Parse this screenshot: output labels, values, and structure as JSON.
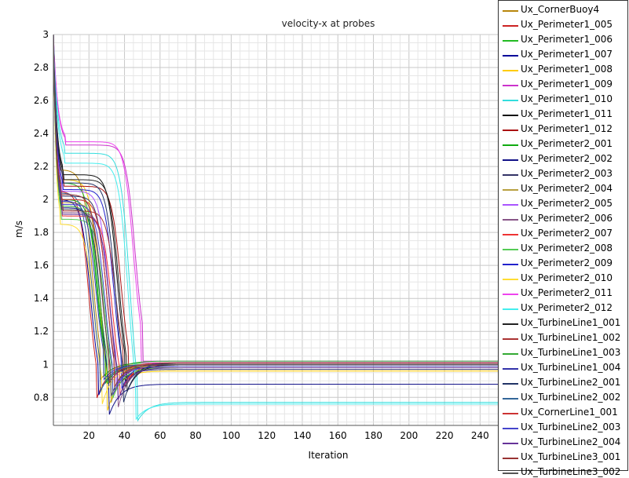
{
  "chart_data": {
    "type": "line",
    "title": "velocity-x at probes",
    "xlabel": "Iteration",
    "ylabel": "m/s",
    "xlim": [
      0,
      250
    ],
    "ylim": [
      0.63,
      3.0
    ],
    "xticks": [
      20,
      40,
      60,
      80,
      100,
      120,
      140,
      160,
      180,
      200,
      220,
      240
    ],
    "yticks": [
      0.8,
      1.0,
      1.2,
      1.4,
      1.6,
      1.8,
      2.0,
      2.2,
      2.4,
      2.6,
      2.8,
      3.0
    ],
    "ytick_labels": [
      "0.8",
      "1",
      "1.2",
      "1.4",
      "1.6",
      "1.8",
      "2",
      "2.2",
      "2.4",
      "2.6",
      "2.8",
      "3"
    ],
    "grid": true,
    "legend_position": "right",
    "series": [
      {
        "name": "Ux_CornerBuoy4",
        "color": "#b8860b",
        "plateau": 2.18,
        "drop": 22,
        "min": 0.9,
        "final": 1.0
      },
      {
        "name": "Ux_Perimeter1_005",
        "color": "#cc2222",
        "plateau": 2.05,
        "drop": 20,
        "min": 0.78,
        "final": 0.99
      },
      {
        "name": "Ux_Perimeter1_006",
        "color": "#22bb22",
        "plateau": 2.1,
        "drop": 24,
        "min": 0.92,
        "final": 1.01
      },
      {
        "name": "Ux_Perimeter1_007",
        "color": "#000099",
        "plateau": 2.0,
        "drop": 21,
        "min": 0.8,
        "final": 0.98
      },
      {
        "name": "Ux_Perimeter1_008",
        "color": "#ffcc00",
        "plateau": 2.12,
        "drop": 26,
        "min": 0.7,
        "final": 0.96
      },
      {
        "name": "Ux_Perimeter1_009",
        "color": "#cc33cc",
        "plateau": 2.33,
        "drop": 46,
        "min": 1.02,
        "final": 1.02
      },
      {
        "name": "Ux_Perimeter1_010",
        "color": "#33dddd",
        "plateau": 2.28,
        "drop": 43,
        "min": 0.65,
        "final": 0.77
      },
      {
        "name": "Ux_Perimeter1_011",
        "color": "#111111",
        "plateau": 2.15,
        "drop": 36,
        "min": 0.85,
        "final": 1.0
      },
      {
        "name": "Ux_Perimeter1_012",
        "color": "#aa1111",
        "plateau": 2.08,
        "drop": 38,
        "min": 0.9,
        "final": 1.01
      },
      {
        "name": "Ux_Perimeter2_001",
        "color": "#11aa11",
        "plateau": 2.0,
        "drop": 25,
        "min": 0.88,
        "final": 0.99
      },
      {
        "name": "Ux_Perimeter2_002",
        "color": "#111188",
        "plateau": 1.95,
        "drop": 27,
        "min": 0.68,
        "final": 0.88
      },
      {
        "name": "Ux_Perimeter2_003",
        "color": "#333366",
        "plateau": 2.02,
        "drop": 30,
        "min": 0.82,
        "final": 0.97
      },
      {
        "name": "Ux_Perimeter2_004",
        "color": "#b8a040",
        "plateau": 1.98,
        "drop": 28,
        "min": 0.75,
        "final": 0.98
      },
      {
        "name": "Ux_Perimeter2_005",
        "color": "#aa55ff",
        "plateau": 2.05,
        "drop": 31,
        "min": 0.86,
        "final": 1.0
      },
      {
        "name": "Ux_Perimeter2_006",
        "color": "#885588",
        "plateau": 1.92,
        "drop": 32,
        "min": 0.72,
        "final": 0.99
      },
      {
        "name": "Ux_Perimeter2_007",
        "color": "#ee3333",
        "plateau": 1.9,
        "drop": 33,
        "min": 0.8,
        "final": 1.0
      },
      {
        "name": "Ux_Perimeter2_008",
        "color": "#55cc55",
        "plateau": 1.88,
        "drop": 29,
        "min": 0.78,
        "final": 0.98
      },
      {
        "name": "Ux_Perimeter2_009",
        "color": "#2222cc",
        "plateau": 2.06,
        "drop": 34,
        "min": 0.84,
        "final": 1.01
      },
      {
        "name": "Ux_Perimeter2_010",
        "color": "#ffdd33",
        "plateau": 1.85,
        "drop": 23,
        "min": 0.74,
        "final": 0.99
      },
      {
        "name": "Ux_Perimeter2_011",
        "color": "#ee44ee",
        "plateau": 2.35,
        "drop": 45,
        "min": 1.01,
        "final": 1.01
      },
      {
        "name": "Ux_Perimeter2_012",
        "color": "#44eeee",
        "plateau": 2.22,
        "drop": 42,
        "min": 0.66,
        "final": 0.76
      },
      {
        "name": "Ux_TurbineLine1_001",
        "color": "#222222",
        "plateau": 2.12,
        "drop": 37,
        "min": 0.82,
        "final": 1.0
      },
      {
        "name": "Ux_TurbineLine1_002",
        "color": "#aa3333",
        "plateau": 1.93,
        "drop": 35,
        "min": 0.92,
        "final": 1.0
      },
      {
        "name": "Ux_TurbineLine1_003",
        "color": "#33aa33",
        "plateau": 1.96,
        "drop": 26,
        "min": 0.87,
        "final": 1.02
      },
      {
        "name": "Ux_TurbineLine1_004",
        "color": "#3333aa",
        "plateau": 1.99,
        "drop": 24,
        "min": 0.9,
        "final": 1.0
      },
      {
        "name": "Ux_TurbineLine2_001",
        "color": "#223366",
        "plateau": 2.1,
        "drop": 35,
        "min": 0.75,
        "final": 1.01
      },
      {
        "name": "Ux_TurbineLine2_002",
        "color": "#336699",
        "plateau": 2.04,
        "drop": 22,
        "min": 0.82,
        "final": 1.0
      },
      {
        "name": "Ux_CornerLine1_001",
        "color": "#cc3333",
        "plateau": 2.0,
        "drop": 30,
        "min": 0.85,
        "final": 1.01
      },
      {
        "name": "Ux_TurbineLine2_003",
        "color": "#4444cc",
        "plateau": 1.97,
        "drop": 29,
        "min": 0.8,
        "final": 0.99
      },
      {
        "name": "Ux_TurbineLine2_004",
        "color": "#663399",
        "plateau": 1.91,
        "drop": 32,
        "min": 0.77,
        "final": 0.98
      },
      {
        "name": "Ux_TurbineLine3_001",
        "color": "#993333",
        "plateau": 2.03,
        "drop": 27,
        "min": 0.88,
        "final": 1.0
      },
      {
        "name": "Ux_TurbineLine3_002",
        "color": "#555555",
        "plateau": 1.94,
        "drop": 28,
        "min": 0.79,
        "final": 1.0
      }
    ]
  }
}
